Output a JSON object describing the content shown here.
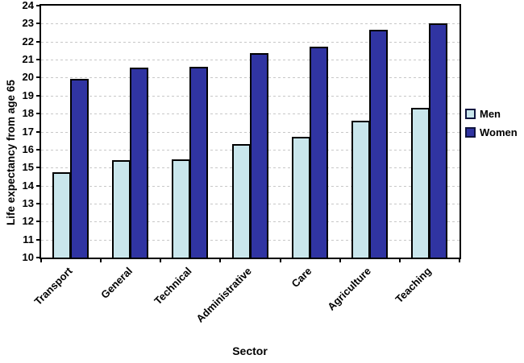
{
  "chart_data": {
    "type": "bar",
    "title": "",
    "xlabel": "Sector",
    "ylabel": "Life expectancy from age 65",
    "categories": [
      "Transport",
      "General",
      "Technical",
      "Administrative",
      "Care",
      "Agriculture",
      "Teaching"
    ],
    "series": [
      {
        "name": "Men",
        "color": "#c9e6ec",
        "values": [
          14.75,
          15.4,
          15.45,
          16.3,
          16.7,
          17.6,
          18.3
        ]
      },
      {
        "name": "Women",
        "color": "#3034a2",
        "values": [
          19.95,
          20.55,
          20.6,
          21.35,
          21.7,
          22.65,
          23.0
        ]
      }
    ],
    "ylim": [
      10,
      24
    ],
    "ytick_step": 1,
    "yticks": [
      10,
      11,
      12,
      13,
      14,
      15,
      16,
      17,
      18,
      19,
      20,
      21,
      22,
      23,
      24
    ],
    "grid": "horizontal-dashed",
    "legend_position": "right",
    "bar_border_color": "#000000",
    "gridline_color": "#c8c8c8",
    "legend_swatch_border": "#10153f"
  }
}
